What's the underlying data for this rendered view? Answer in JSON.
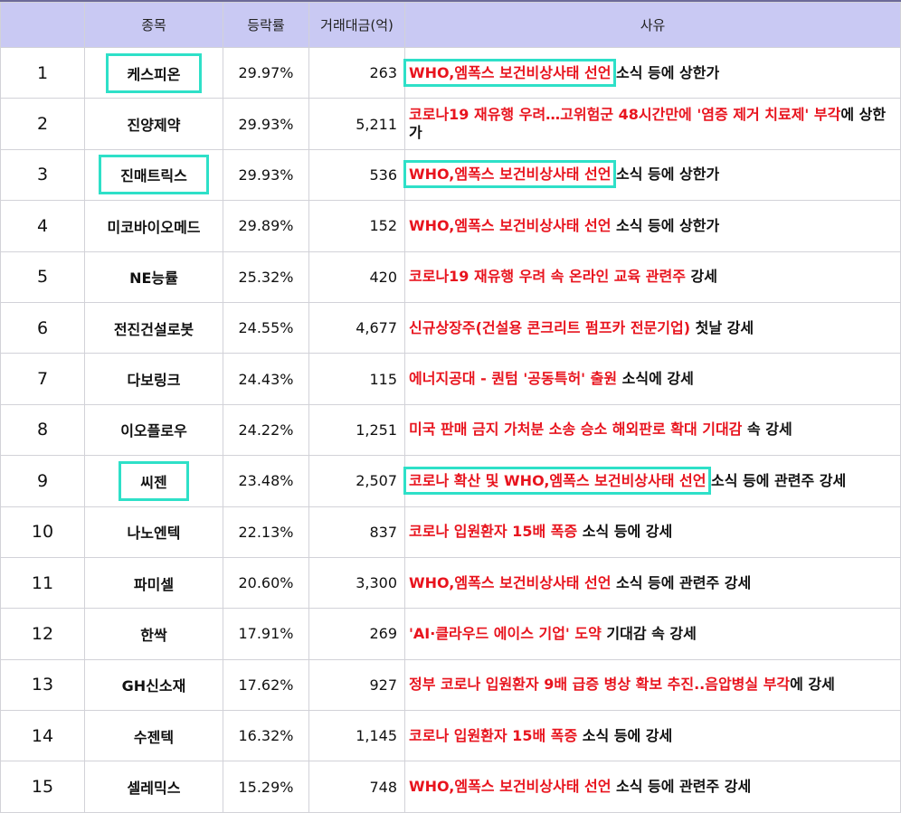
{
  "headers": {
    "num": "",
    "name": "종목",
    "rate": "등락률",
    "amount": "거래대금(억)",
    "reason": "사유"
  },
  "rows": [
    {
      "num": "1",
      "name": "케스피온",
      "rate": "29.97%",
      "amount": "263",
      "reason_red": "WHO,엠폭스 보건비상사태 선언",
      "reason_black": " 소식 등에 상한가"
    },
    {
      "num": "2",
      "name": "진양제약",
      "rate": "29.93%",
      "amount": "5,211",
      "reason_red": "코로나19 재유행 우려…고위험군 48시간만에 '염증 제거 치료제' 부각",
      "reason_black": "에 상한가"
    },
    {
      "num": "3",
      "name": "진매트릭스",
      "rate": "29.93%",
      "amount": "536",
      "reason_red": "WHO,엠폭스 보건비상사태 선언",
      "reason_black": " 소식 등에 상한가"
    },
    {
      "num": "4",
      "name": "미코바이오메드",
      "rate": "29.89%",
      "amount": "152",
      "reason_red": "WHO,엠폭스 보건비상사태 선언",
      "reason_black": " 소식 등에 상한가"
    },
    {
      "num": "5",
      "name": "NE능률",
      "rate": "25.32%",
      "amount": "420",
      "reason_red": "코로나19 재유행 우려 속 온라인 교육 관련주",
      "reason_black": " 강세"
    },
    {
      "num": "6",
      "name": "전진건설로봇",
      "rate": "24.55%",
      "amount": "4,677",
      "reason_red": "신규상장주(건설용 콘크리트 펌프카 전문기업)",
      "reason_black": " 첫날 강세"
    },
    {
      "num": "7",
      "name": "다보링크",
      "rate": "24.43%",
      "amount": "115",
      "reason_red": "에너지공대 - 퀀텀 '공동특허' 출원",
      "reason_black": " 소식에 강세"
    },
    {
      "num": "8",
      "name": "이오플로우",
      "rate": "24.22%",
      "amount": "1,251",
      "reason_red": "미국 판매 금지 가처분 소송 승소 해외판로 확대 기대감",
      "reason_black": " 속 강세"
    },
    {
      "num": "9",
      "name": "씨젠",
      "rate": "23.48%",
      "amount": "2,507",
      "reason_red": "코로나 확산 및 WHO,엠폭스 보건비상사태 선언",
      "reason_black": " 소식 등에 관련주 강세"
    },
    {
      "num": "10",
      "name": "나노엔텍",
      "rate": "22.13%",
      "amount": "837",
      "reason_red": "코로나 입원환자 15배 폭증",
      "reason_black": " 소식 등에 강세"
    },
    {
      "num": "11",
      "name": "파미셀",
      "rate": "20.60%",
      "amount": "3,300",
      "reason_red": "WHO,엠폭스 보건비상사태 선언",
      "reason_black": " 소식 등에 관련주 강세"
    },
    {
      "num": "12",
      "name": "한싹",
      "rate": "17.91%",
      "amount": "269",
      "reason_red": "'AI·클라우드 에이스 기업' 도약",
      "reason_black": " 기대감 속 강세"
    },
    {
      "num": "13",
      "name": "GH신소재",
      "rate": "17.62%",
      "amount": "927",
      "reason_red": "정부 코로나 입원환자 9배 급증 병상 확보 추진..음압병실 부각",
      "reason_black": "에 강세"
    },
    {
      "num": "14",
      "name": "수젠텍",
      "rate": "16.32%",
      "amount": "1,145",
      "reason_red": "코로나 입원환자 15배 폭증",
      "reason_black": " 소식 등에 강세"
    },
    {
      "num": "15",
      "name": "셀레믹스",
      "rate": "15.29%",
      "amount": "748",
      "reason_red": "WHO,엠폭스 보건비상사태 선언",
      "reason_black": " 소식 등에 관련주 강세"
    }
  ],
  "highlighted_rows": [
    1,
    3,
    9
  ],
  "colors": {
    "header_bg": "#c9c9f3",
    "reason_highlight": "#e8141e",
    "box_outline": "#2ee0c8"
  }
}
